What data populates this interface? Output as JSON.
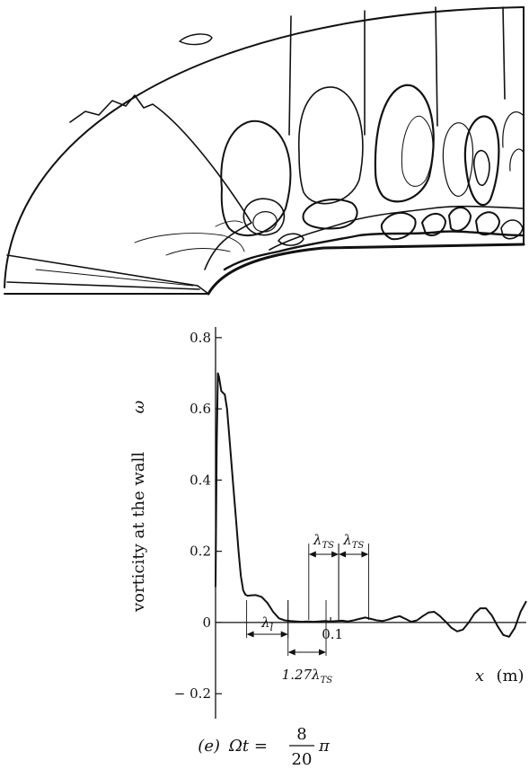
{
  "chart_data": {
    "type": "line",
    "title": "",
    "ylabel": "vorticity at the wall",
    "ylabel_symbol": "ω",
    "xlabel_symbol": "x",
    "xlabel_unit": "(m)",
    "ylim": [
      -0.25,
      0.85
    ],
    "xlim": [
      0,
      0.27
    ],
    "yticks": [
      0.8,
      0.6,
      0.4,
      0.2,
      0,
      -0.2
    ],
    "ytick_labels": [
      "0.8",
      "0.6",
      "0.4",
      "0.2",
      "0",
      "− 0.2"
    ],
    "xticks": [
      0.1
    ],
    "xtick_labels": [
      "0.1"
    ],
    "series": [
      {
        "x": [
          0,
          0.001,
          0.002,
          0.003,
          0.005,
          0.008,
          0.01,
          0.012,
          0.015,
          0.018,
          0.02,
          0.022,
          0.024,
          0.026,
          0.028,
          0.03,
          0.035,
          0.04,
          0.045,
          0.05,
          0.055,
          0.06,
          0.065,
          0.07,
          0.075,
          0.08,
          0.085,
          0.09,
          0.095,
          0.1,
          0.105,
          0.11,
          0.115,
          0.12,
          0.125,
          0.13,
          0.135,
          0.14,
          0.145,
          0.15,
          0.155,
          0.16,
          0.165,
          0.17,
          0.175,
          0.18,
          0.185,
          0.19,
          0.195,
          0.2,
          0.205,
          0.21,
          0.215,
          0.22,
          0.225,
          0.23,
          0.235,
          0.24,
          0.245,
          0.25,
          0.255,
          0.26,
          0.265,
          0.27
        ],
        "y": [
          0.1,
          0.5,
          0.7,
          0.69,
          0.65,
          0.64,
          0.6,
          0.52,
          0.4,
          0.28,
          0.2,
          0.13,
          0.09,
          0.078,
          0.075,
          0.076,
          0.077,
          0.072,
          0.055,
          0.03,
          0.012,
          0.006,
          0.004,
          0.003,
          0.002,
          0.003,
          0.002,
          0.003,
          0.004,
          0.003,
          0.004,
          0.005,
          0.003,
          0.006,
          0.01,
          0.014,
          0.01,
          0.006,
          0.004,
          0.008,
          0.014,
          0.018,
          0.01,
          0.002,
          0.006,
          0.018,
          0.028,
          0.03,
          0.018,
          0.002,
          -0.015,
          -0.025,
          -0.02,
          0.0,
          0.025,
          0.04,
          0.04,
          0.02,
          -0.01,
          -0.035,
          -0.04,
          -0.015,
          0.03,
          0.06
        ]
      }
    ],
    "annotations": {
      "lambda_l": {
        "label": "λl",
        "from": 0.027,
        "to": 0.063
      },
      "lambda_ts_scaled": {
        "label": "1.27λTS",
        "from": 0.063,
        "to": 0.096
      },
      "lambda_ts_1": {
        "label": "λTS",
        "from": 0.081,
        "to": 0.107
      },
      "lambda_ts_2": {
        "label": "λTS",
        "from": 0.107,
        "to": 0.133
      }
    }
  },
  "caption": {
    "prefix": "(e)",
    "lhs": "Ωt =",
    "numerator": "8",
    "denominator": "20",
    "suffix": "π"
  }
}
